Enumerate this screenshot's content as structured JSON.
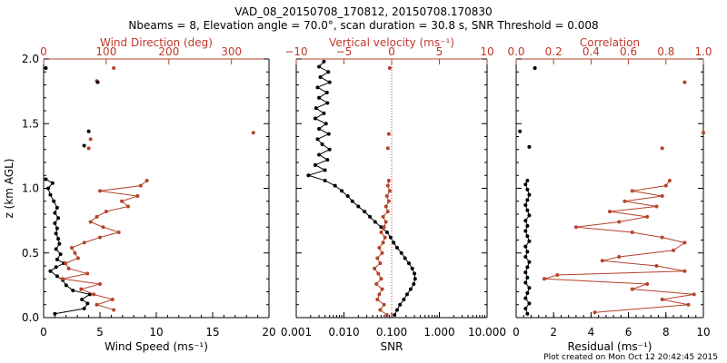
{
  "title_line1": "VAD_08_20150708_170812, 20150708.170830",
  "title_line2": "Nbeams = 8, Elevation angle = 70.0°, scan duration = 30.8 s, SNR Threshold = 0.008",
  "footer": "Plot created on Mon Oct 12 20:42:45 2015",
  "colors": {
    "black": "#000000",
    "red": "#b5432b"
  },
  "chart_data": [
    {
      "type": "line",
      "ylabel": "z (km AGL)",
      "ylim": [
        0,
        2
      ],
      "yticks": [
        "0.0",
        "0.5",
        "1.0",
        "1.5",
        "2.0"
      ],
      "xlabel": "Wind Speed (ms⁻¹)",
      "xlim": [
        0,
        20
      ],
      "xticks": [
        "0",
        "5",
        "10",
        "15",
        "20"
      ],
      "top_xlabel": "Wind Direction (deg)",
      "top_xlim": [
        0,
        360
      ],
      "top_xticks": [
        "0",
        "100",
        "200",
        "300"
      ],
      "series": [
        {
          "axis": "bottom",
          "color": "black",
          "points": [
            [
              1.0,
              0.03
            ],
            [
              3.6,
              0.07
            ],
            [
              3.9,
              0.11
            ],
            [
              3.4,
              0.14
            ],
            [
              4.1,
              0.18
            ],
            [
              2.6,
              0.21
            ],
            [
              2.0,
              0.25
            ],
            [
              1.7,
              0.29
            ],
            [
              1.2,
              0.32
            ],
            [
              0.6,
              0.36
            ],
            [
              1.1,
              0.39
            ],
            [
              1.8,
              0.42
            ],
            [
              1.2,
              0.45
            ],
            [
              1.5,
              0.49
            ],
            [
              1.1,
              0.53
            ],
            [
              1.4,
              0.57
            ],
            [
              1.3,
              0.61
            ],
            [
              1.1,
              0.65
            ],
            [
              1.2,
              0.69
            ],
            [
              1.0,
              0.73
            ],
            [
              1.3,
              0.77
            ],
            [
              1.0,
              0.81
            ],
            [
              1.2,
              0.85
            ],
            [
              0.9,
              0.9
            ],
            [
              0.6,
              0.95
            ],
            [
              0.4,
              1.0
            ],
            [
              0.8,
              1.04
            ],
            [
              0.2,
              1.07
            ]
          ]
        },
        {
          "axis": "top",
          "color": "red",
          "points": [
            [
              112,
              0.06
            ],
            [
              85,
              0.1
            ],
            [
              110,
              0.14
            ],
            [
              80,
              0.18
            ],
            [
              60,
              0.22
            ],
            [
              90,
              0.26
            ],
            [
              30,
              0.3
            ],
            [
              70,
              0.34
            ],
            [
              40,
              0.38
            ],
            [
              35,
              0.42
            ],
            [
              55,
              0.46
            ],
            [
              50,
              0.5
            ],
            [
              45,
              0.54
            ],
            [
              65,
              0.58
            ],
            [
              90,
              0.62
            ],
            [
              120,
              0.66
            ],
            [
              95,
              0.7
            ],
            [
              75,
              0.74
            ],
            [
              85,
              0.78
            ],
            [
              100,
              0.82
            ],
            [
              135,
              0.86
            ],
            [
              125,
              0.9
            ],
            [
              150,
              0.94
            ],
            [
              90,
              0.98
            ],
            [
              155,
              1.02
            ],
            [
              165,
              1.06
            ]
          ]
        },
        {
          "axis": "top",
          "color": "red",
          "marker_only": true,
          "points": [
            [
              112,
              1.93
            ],
            [
              85,
              1.83
            ],
            [
              75,
              1.38
            ],
            [
              72,
              1.31
            ],
            [
              335,
              1.43
            ]
          ]
        },
        {
          "axis": "bottom",
          "color": "black",
          "marker_only": true,
          "points": [
            [
              0.2,
              1.93
            ],
            [
              4.8,
              1.82
            ],
            [
              4.0,
              1.44
            ],
            [
              3.6,
              1.33
            ]
          ]
        }
      ]
    },
    {
      "type": "line",
      "ylim": [
        0,
        2
      ],
      "xlabel": "SNR",
      "xscale": "log",
      "xlim": [
        0.001,
        10
      ],
      "xticks": [
        "0.001",
        "0.010",
        "0.100",
        "1.000",
        "10.000"
      ],
      "top_xlabel": "Vertical velocity (ms⁻¹)",
      "top_xlim": [
        -10,
        10
      ],
      "top_xticks": [
        "−10",
        "−5",
        "0",
        "5",
        "10"
      ],
      "reference_line": {
        "axis": "top",
        "x": 0,
        "style": "dotted"
      },
      "series": [
        {
          "axis": "bottom",
          "color": "black",
          "points": [
            [
              0.115,
              0.02
            ],
            [
              0.13,
              0.06
            ],
            [
              0.15,
              0.1
            ],
            [
              0.18,
              0.14
            ],
            [
              0.21,
              0.18
            ],
            [
              0.25,
              0.22
            ],
            [
              0.29,
              0.26
            ],
            [
              0.31,
              0.3
            ],
            [
              0.3,
              0.34
            ],
            [
              0.27,
              0.38
            ],
            [
              0.23,
              0.42
            ],
            [
              0.19,
              0.46
            ],
            [
              0.16,
              0.5
            ],
            [
              0.13,
              0.54
            ],
            [
              0.11,
              0.58
            ],
            [
              0.095,
              0.62
            ],
            [
              0.08,
              0.66
            ],
            [
              0.06,
              0.7
            ],
            [
              0.045,
              0.74
            ],
            [
              0.035,
              0.78
            ],
            [
              0.027,
              0.82
            ],
            [
              0.02,
              0.86
            ],
            [
              0.015,
              0.9
            ],
            [
              0.012,
              0.94
            ],
            [
              0.009,
              0.98
            ],
            [
              0.0065,
              1.02
            ],
            [
              0.004,
              1.06
            ],
            [
              0.0018,
              1.1
            ],
            [
              0.004,
              1.14
            ],
            [
              0.0025,
              1.18
            ],
            [
              0.0045,
              1.22
            ],
            [
              0.003,
              1.26
            ],
            [
              0.005,
              1.3
            ],
            [
              0.0035,
              1.34
            ],
            [
              0.0028,
              1.38
            ],
            [
              0.0048,
              1.42
            ],
            [
              0.003,
              1.46
            ],
            [
              0.0042,
              1.5
            ],
            [
              0.0025,
              1.54
            ],
            [
              0.0038,
              1.58
            ],
            [
              0.0026,
              1.62
            ],
            [
              0.0045,
              1.66
            ],
            [
              0.003,
              1.7
            ],
            [
              0.0044,
              1.74
            ],
            [
              0.0028,
              1.78
            ],
            [
              0.005,
              1.82
            ],
            [
              0.0032,
              1.86
            ],
            [
              0.0047,
              1.9
            ],
            [
              0.003,
              1.94
            ],
            [
              0.0038,
              1.98
            ]
          ]
        },
        {
          "axis": "top",
          "color": "red",
          "points": [
            [
              -0.5,
              0.02
            ],
            [
              -1.2,
              0.06
            ],
            [
              -0.8,
              0.1
            ],
            [
              -1.5,
              0.14
            ],
            [
              -1.3,
              0.18
            ],
            [
              -1.0,
              0.22
            ],
            [
              -1.6,
              0.26
            ],
            [
              -1.1,
              0.3
            ],
            [
              -1.4,
              0.34
            ],
            [
              -1.8,
              0.38
            ],
            [
              -1.2,
              0.42
            ],
            [
              -1.5,
              0.46
            ],
            [
              -1.0,
              0.5
            ],
            [
              -1.3,
              0.54
            ],
            [
              -0.9,
              0.58
            ],
            [
              -0.7,
              0.62
            ],
            [
              -1.1,
              0.66
            ],
            [
              -0.8,
              0.7
            ],
            [
              -0.6,
              0.74
            ],
            [
              -0.9,
              0.78
            ],
            [
              -0.4,
              0.82
            ],
            [
              -0.6,
              0.86
            ],
            [
              -0.3,
              0.9
            ],
            [
              -0.5,
              0.94
            ],
            [
              -0.2,
              0.98
            ],
            [
              -0.4,
              1.02
            ],
            [
              -0.3,
              1.06
            ]
          ]
        },
        {
          "axis": "top",
          "color": "red",
          "marker_only": true,
          "points": [
            [
              -0.2,
              1.93
            ],
            [
              -0.3,
              1.42
            ],
            [
              -0.4,
              1.31
            ]
          ]
        }
      ]
    },
    {
      "type": "line",
      "ylim": [
        0,
        2
      ],
      "xlabel": "Residual (ms⁻¹)",
      "xlim": [
        0,
        10
      ],
      "xticks": [
        "0",
        "2",
        "4",
        "6",
        "8",
        "10"
      ],
      "top_xlabel": "Correlation",
      "top_xlim": [
        0,
        1
      ],
      "top_xticks": [
        "0.0",
        "0.2",
        "0.4",
        "0.6",
        "0.8",
        "1.0"
      ],
      "series": [
        {
          "axis": "bottom",
          "color": "black",
          "points": [
            [
              0.6,
              0.03
            ],
            [
              0.5,
              0.07
            ],
            [
              0.7,
              0.11
            ],
            [
              0.5,
              0.15
            ],
            [
              0.6,
              0.19
            ],
            [
              0.7,
              0.23
            ],
            [
              0.5,
              0.27
            ],
            [
              0.6,
              0.31
            ],
            [
              0.5,
              0.35
            ],
            [
              0.6,
              0.39
            ],
            [
              0.7,
              0.43
            ],
            [
              0.5,
              0.47
            ],
            [
              0.6,
              0.51
            ],
            [
              0.5,
              0.55
            ],
            [
              0.7,
              0.59
            ],
            [
              0.6,
              0.63
            ],
            [
              0.5,
              0.67
            ],
            [
              0.6,
              0.71
            ],
            [
              0.5,
              0.75
            ],
            [
              0.7,
              0.79
            ],
            [
              0.6,
              0.83
            ],
            [
              0.5,
              0.87
            ],
            [
              0.6,
              0.91
            ],
            [
              0.7,
              0.95
            ],
            [
              0.6,
              0.99
            ],
            [
              0.5,
              1.03
            ],
            [
              0.6,
              1.06
            ]
          ]
        },
        {
          "axis": "top",
          "color": "red",
          "points": [
            [
              0.42,
              0.04
            ],
            [
              0.92,
              0.1
            ],
            [
              0.78,
              0.14
            ],
            [
              0.95,
              0.18
            ],
            [
              0.62,
              0.22
            ],
            [
              0.7,
              0.26
            ],
            [
              0.15,
              0.3
            ],
            [
              0.22,
              0.33
            ],
            [
              0.9,
              0.36
            ],
            [
              0.75,
              0.4
            ],
            [
              0.46,
              0.44
            ],
            [
              0.55,
              0.47
            ],
            [
              0.84,
              0.52
            ],
            [
              0.9,
              0.58
            ],
            [
              0.78,
              0.62
            ],
            [
              0.62,
              0.66
            ],
            [
              0.32,
              0.7
            ],
            [
              0.55,
              0.74
            ],
            [
              0.7,
              0.78
            ],
            [
              0.5,
              0.82
            ],
            [
              0.75,
              0.86
            ],
            [
              0.58,
              0.9
            ],
            [
              0.78,
              0.94
            ],
            [
              0.62,
              0.98
            ],
            [
              0.8,
              1.02
            ],
            [
              0.82,
              1.06
            ]
          ]
        },
        {
          "axis": "top",
          "color": "red",
          "marker_only": true,
          "points": [
            [
              0.1,
              1.93
            ],
            [
              0.9,
              1.82
            ],
            [
              0.78,
              1.31
            ],
            [
              1.0,
              1.43
            ]
          ]
        },
        {
          "axis": "bottom",
          "color": "black",
          "marker_only": true,
          "points": [
            [
              1.0,
              1.93
            ],
            [
              0.2,
              1.44
            ],
            [
              0.7,
              1.32
            ]
          ]
        }
      ]
    }
  ]
}
